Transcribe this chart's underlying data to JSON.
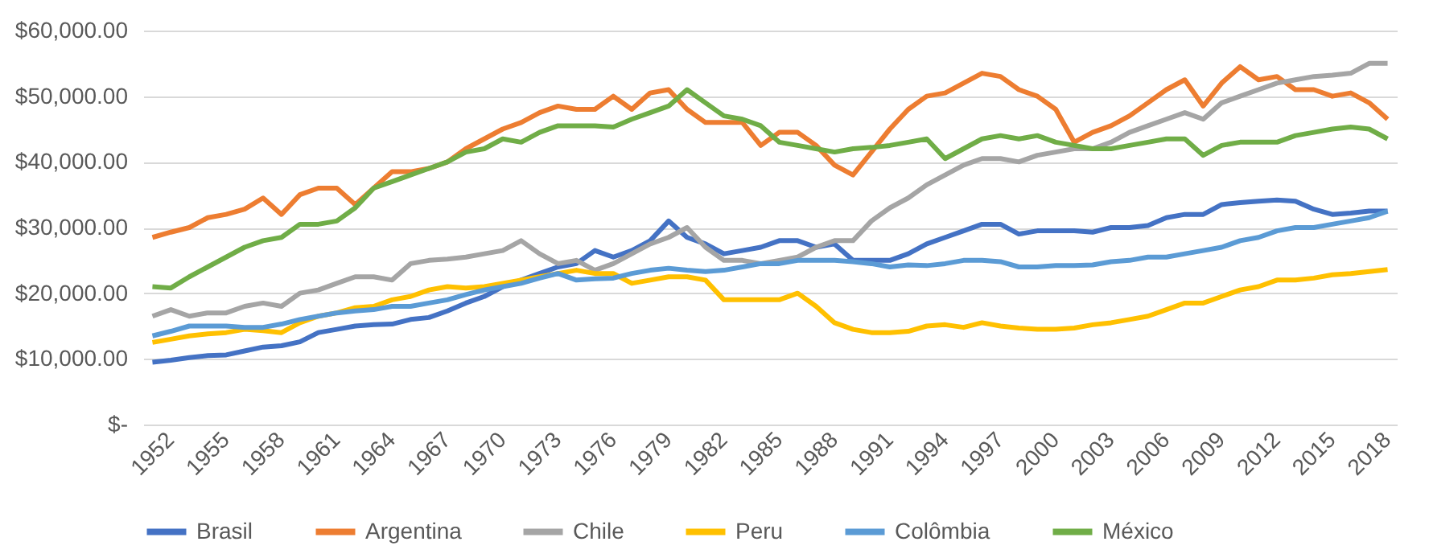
{
  "chart_data": {
    "type": "line",
    "categories": [
      "1952",
      null,
      null,
      "1955",
      null,
      null,
      "1958",
      null,
      null,
      "1961",
      null,
      null,
      "1964",
      null,
      null,
      "1967",
      null,
      null,
      "1970",
      null,
      null,
      "1973",
      null,
      null,
      "1976",
      null,
      null,
      "1979",
      null,
      null,
      "1982",
      null,
      null,
      "1985",
      null,
      null,
      "1988",
      null,
      null,
      "1991",
      null,
      null,
      "1994",
      null,
      null,
      "1997",
      null,
      null,
      "2000",
      null,
      null,
      "2003",
      null,
      null,
      "2006",
      null,
      null,
      "2009",
      null,
      null,
      "2012",
      null,
      null,
      "2015",
      null,
      null,
      "2018",
      null
    ],
    "series": [
      {
        "name": "Brasil",
        "color": "#4472c4",
        "values": [
          9500,
          9800,
          10200,
          10500,
          10600,
          11200,
          11800,
          12000,
          12600,
          14000,
          14500,
          15000,
          15200,
          15300,
          16000,
          16300,
          17300,
          18500,
          19500,
          21000,
          22000,
          23000,
          24000,
          24500,
          26500,
          25500,
          26500,
          28000,
          31000,
          28500,
          27500,
          26000,
          26500,
          27000,
          28000,
          28000,
          27000,
          27500,
          25000,
          25000,
          25000,
          26000,
          27500,
          28500,
          29500,
          30500,
          30500,
          29000,
          29500,
          29500,
          29500,
          29300,
          30000,
          30000,
          30300,
          31500,
          32000,
          32000,
          33500,
          33800,
          34000,
          34200,
          34000,
          32800,
          32000,
          32200,
          32500,
          32500
        ]
      },
      {
        "name": "Argentina",
        "color": "#ed7d31",
        "values": [
          28500,
          29300,
          30000,
          31500,
          32000,
          32800,
          34500,
          32000,
          35000,
          36000,
          36000,
          33500,
          36000,
          38500,
          38500,
          39000,
          40000,
          42000,
          43500,
          45000,
          46000,
          47500,
          48500,
          48000,
          48000,
          50000,
          48000,
          50500,
          51000,
          48000,
          46000,
          46000,
          46000,
          42500,
          44500,
          44500,
          42500,
          39500,
          38000,
          41500,
          45000,
          48000,
          50000,
          50500,
          52000,
          53500,
          53000,
          51000,
          50000,
          48000,
          43000,
          44500,
          45500,
          47000,
          49000,
          51000,
          52500,
          48500,
          52000,
          54500,
          52500,
          53000,
          51000,
          51000,
          50000,
          50500,
          49000,
          46500
        ]
      },
      {
        "name": "Chile",
        "color": "#a5a5a5",
        "values": [
          16500,
          17500,
          16500,
          17000,
          17000,
          18000,
          18500,
          18000,
          20000,
          20500,
          21500,
          22500,
          22500,
          22000,
          24500,
          25000,
          25200,
          25500,
          26000,
          26500,
          28000,
          26000,
          24500,
          25000,
          23500,
          24500,
          26000,
          27500,
          28500,
          30000,
          27000,
          25000,
          25000,
          24500,
          25000,
          25500,
          27000,
          28000,
          28000,
          31000,
          33000,
          34500,
          36500,
          38000,
          39500,
          40500,
          40500,
          40000,
          41000,
          41500,
          42000,
          42000,
          43000,
          44500,
          45500,
          46500,
          47500,
          46500,
          49000,
          50000,
          51000,
          52000,
          52500,
          53000,
          53200,
          53500,
          55000,
          55000
        ]
      },
      {
        "name": "Peru",
        "color": "#ffc000",
        "values": [
          12500,
          13000,
          13500,
          13800,
          14000,
          14500,
          14300,
          14000,
          15500,
          16500,
          17000,
          17800,
          18000,
          19000,
          19500,
          20500,
          21000,
          20800,
          21000,
          21500,
          22000,
          22500,
          23000,
          23500,
          23000,
          23000,
          21500,
          22000,
          22500,
          22500,
          22000,
          19000,
          19000,
          19000,
          19000,
          20000,
          18000,
          15500,
          14500,
          14000,
          14000,
          14200,
          15000,
          15200,
          14800,
          15500,
          15000,
          14700,
          14500,
          14500,
          14700,
          15200,
          15500,
          16000,
          16500,
          17500,
          18500,
          18500,
          19500,
          20500,
          21000,
          22000,
          22000,
          22300,
          22800,
          23000,
          23300,
          23600
        ]
      },
      {
        "name": "Colômbia",
        "color": "#5b9bd5",
        "values": [
          13500,
          14200,
          15000,
          15000,
          15000,
          14800,
          14800,
          15300,
          16000,
          16500,
          17000,
          17300,
          17500,
          18000,
          18000,
          18500,
          19000,
          19800,
          20500,
          21000,
          21500,
          22300,
          23000,
          22000,
          22200,
          22300,
          23000,
          23500,
          23800,
          23500,
          23300,
          23500,
          24000,
          24500,
          24500,
          25000,
          25000,
          25000,
          24800,
          24500,
          24000,
          24300,
          24200,
          24500,
          25000,
          25000,
          24800,
          24000,
          24000,
          24200,
          24200,
          24300,
          24800,
          25000,
          25500,
          25500,
          26000,
          26500,
          27000,
          28000,
          28500,
          29500,
          30000,
          30000,
          30500,
          31000,
          31500,
          32500
        ]
      },
      {
        "name": "México",
        "color": "#70ad47",
        "values": [
          21000,
          20800,
          22500,
          24000,
          25500,
          27000,
          28000,
          28500,
          30500,
          30500,
          31000,
          33000,
          36000,
          37000,
          38000,
          39000,
          40000,
          41500,
          42000,
          43500,
          43000,
          44500,
          45500,
          45500,
          45500,
          45300,
          46500,
          47500,
          48500,
          51000,
          49000,
          47000,
          46500,
          45500,
          43000,
          42500,
          42000,
          41500,
          42000,
          42200,
          42500,
          43000,
          43500,
          40500,
          42000,
          43500,
          44000,
          43500,
          44000,
          43000,
          42500,
          42000,
          42000,
          42500,
          43000,
          43500,
          43500,
          41000,
          42500,
          43000,
          43000,
          43000,
          44000,
          44500,
          45000,
          45300,
          45000,
          43500
        ]
      }
    ],
    "ylim": [
      0,
      60000
    ],
    "yticks": [
      {
        "value": 0,
        "label": "$-"
      },
      {
        "value": 10000,
        "label": "$10,000.00"
      },
      {
        "value": 20000,
        "label": "$20,000.00"
      },
      {
        "value": 30000,
        "label": "$30,000.00"
      },
      {
        "value": 40000,
        "label": "$40,000.00"
      },
      {
        "value": 50000,
        "label": "$50,000.00"
      },
      {
        "value": 60000,
        "label": "$60,000.00"
      }
    ],
    "grid": "y",
    "legend": "bottom",
    "marker": "none",
    "line_style": "solid"
  }
}
